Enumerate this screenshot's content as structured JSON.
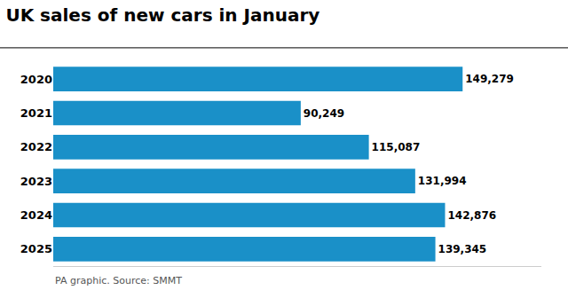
{
  "chart_data": {
    "type": "bar",
    "orientation": "horizontal",
    "title": "UK sales of new cars in January",
    "annotations": [
      "PA graphic. Source: SMMT"
    ],
    "categories": [
      "2020",
      "2021",
      "2022",
      "2023",
      "2024",
      "2025"
    ],
    "values": [
      149279,
      90249,
      115087,
      131994,
      142876,
      139345
    ],
    "value_labels": [
      "149,279",
      "90,249",
      "115,087",
      "131,994",
      "142,876",
      "139,345"
    ],
    "data_labels": true,
    "color": "#1a90c8",
    "xlim": [
      0,
      178000
    ],
    "tick_labels": "y",
    "grid": false
  }
}
